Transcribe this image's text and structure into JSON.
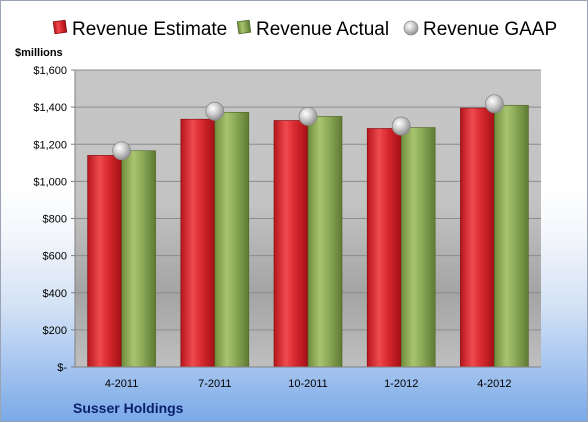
{
  "chart_data": {
    "type": "bar",
    "title": "",
    "ylabel": "$millions",
    "company": "Susser Holdings",
    "categories": [
      "4-2011",
      "7-2011",
      "10-2011",
      "1-2012",
      "4-2012"
    ],
    "series": [
      {
        "name": "Revenue Estimate",
        "type": "bar",
        "color": "#d2232a",
        "values": [
          1140,
          1335,
          1328,
          1285,
          1395
        ]
      },
      {
        "name": "Revenue Actual",
        "type": "bar",
        "color": "#8cac58",
        "values": [
          1165,
          1372,
          1350,
          1290,
          1410
        ]
      },
      {
        "name": "Revenue GAAP",
        "type": "marker",
        "color": "#b8b8b8",
        "values": [
          1165,
          1378,
          1350,
          1298,
          1418
        ]
      }
    ],
    "ylim": [
      0,
      1600
    ],
    "yticks": [
      {
        "value": 0,
        "label": "$-"
      },
      {
        "value": 200,
        "label": "$200"
      },
      {
        "value": 400,
        "label": "$400"
      },
      {
        "value": 600,
        "label": "$600"
      },
      {
        "value": 800,
        "label": "$800"
      },
      {
        "value": 1000,
        "label": "$1,000"
      },
      {
        "value": 1200,
        "label": "$1,200"
      },
      {
        "value": 1400,
        "label": "$1,400"
      },
      {
        "value": 1600,
        "label": "$1,600"
      }
    ],
    "grid": true,
    "legend_position": "top"
  }
}
